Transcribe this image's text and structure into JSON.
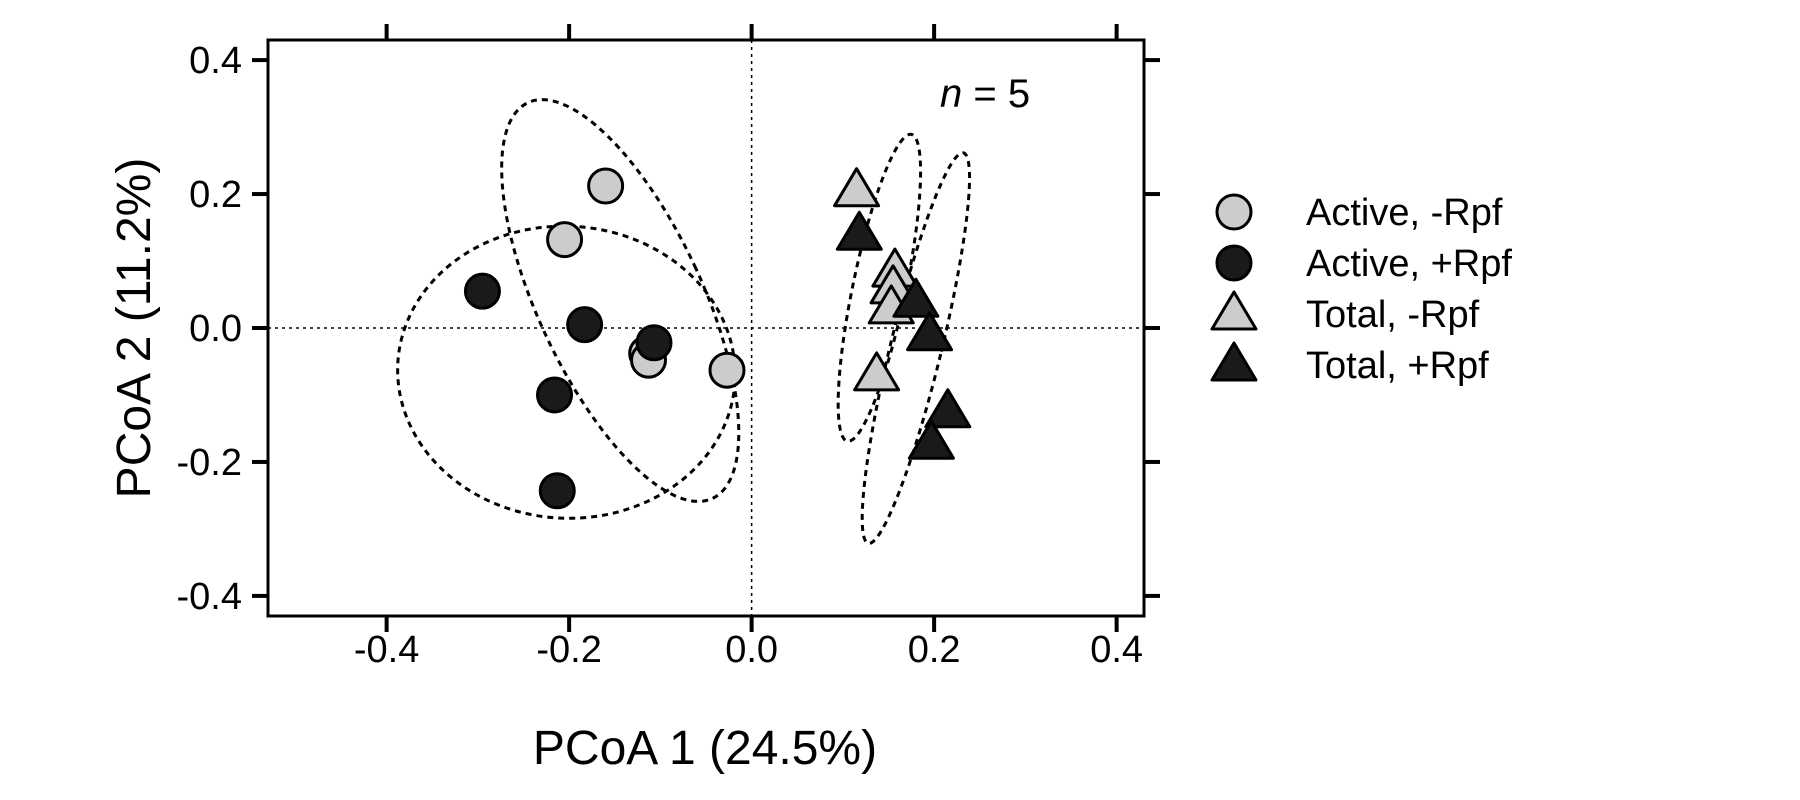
{
  "chart_data": {
    "type": "scatter",
    "xlabel": "PCoA 1 (24.5%)",
    "ylabel": "PCoA 2 (11.2%)",
    "xlim": [
      -0.53,
      0.43
    ],
    "ylim": [
      -0.43,
      0.43
    ],
    "x_ticks": [
      -0.4,
      -0.2,
      0.0,
      0.2,
      0.4
    ],
    "y_ticks": [
      -0.4,
      -0.2,
      0.0,
      0.2,
      0.4
    ],
    "x_tick_labels": [
      "-0.4",
      "-0.2",
      "0.0",
      "0.2",
      "0.4"
    ],
    "y_tick_labels": [
      "-0.4",
      "-0.2",
      "0.0",
      "0.2",
      "0.4"
    ],
    "grid": false,
    "reference_lines": {
      "x": 0.0,
      "y": 0.0,
      "style": "dotted"
    },
    "annotation": {
      "italic": "n",
      "rest": " = 5"
    },
    "legend_position": "right",
    "colors": {
      "light": "#cccccc",
      "dark": "#1a1a1a",
      "edge": "#000000"
    },
    "series": [
      {
        "name": "Active, -Rpf",
        "marker": "circle",
        "fill": "light",
        "points": [
          [
            -0.16,
            0.212
          ],
          [
            -0.205,
            0.132
          ],
          [
            -0.115,
            -0.038
          ],
          [
            -0.113,
            -0.048
          ],
          [
            -0.027,
            -0.063
          ]
        ]
      },
      {
        "name": "Active, +Rpf",
        "marker": "circle",
        "fill": "dark",
        "points": [
          [
            -0.295,
            0.055
          ],
          [
            -0.183,
            0.005
          ],
          [
            -0.107,
            -0.022
          ],
          [
            -0.216,
            -0.1
          ],
          [
            -0.213,
            -0.243
          ]
        ]
      },
      {
        "name": "Total, -Rpf",
        "marker": "triangle",
        "fill": "light",
        "points": [
          [
            0.115,
            0.205
          ],
          [
            0.157,
            0.085
          ],
          [
            0.155,
            0.06
          ],
          [
            0.153,
            0.03
          ],
          [
            0.137,
            -0.07
          ]
        ]
      },
      {
        "name": "Total, +Rpf",
        "marker": "triangle",
        "fill": "dark",
        "points": [
          [
            0.118,
            0.14
          ],
          [
            0.18,
            0.04
          ],
          [
            0.195,
            -0.01
          ],
          [
            0.215,
            -0.125
          ],
          [
            0.197,
            -0.172
          ]
        ]
      }
    ],
    "ellipses": [
      {
        "group": "Active, -Rpf",
        "cx": -0.144,
        "cy": 0.041,
        "rx": 0.09,
        "ry": 0.326,
        "angle": -25
      },
      {
        "group": "Active, +Rpf",
        "cx": -0.203,
        "cy": -0.066,
        "rx": 0.185,
        "ry": 0.218,
        "angle": 3
      },
      {
        "group": "Total, -Rpf",
        "cx": 0.14,
        "cy": 0.06,
        "rx": 0.029,
        "ry": 0.234,
        "angle": 11.8
      },
      {
        "group": "Total, +Rpf",
        "cx": 0.18,
        "cy": -0.03,
        "rx": 0.028,
        "ry": 0.3,
        "angle": 13.7
      }
    ]
  }
}
